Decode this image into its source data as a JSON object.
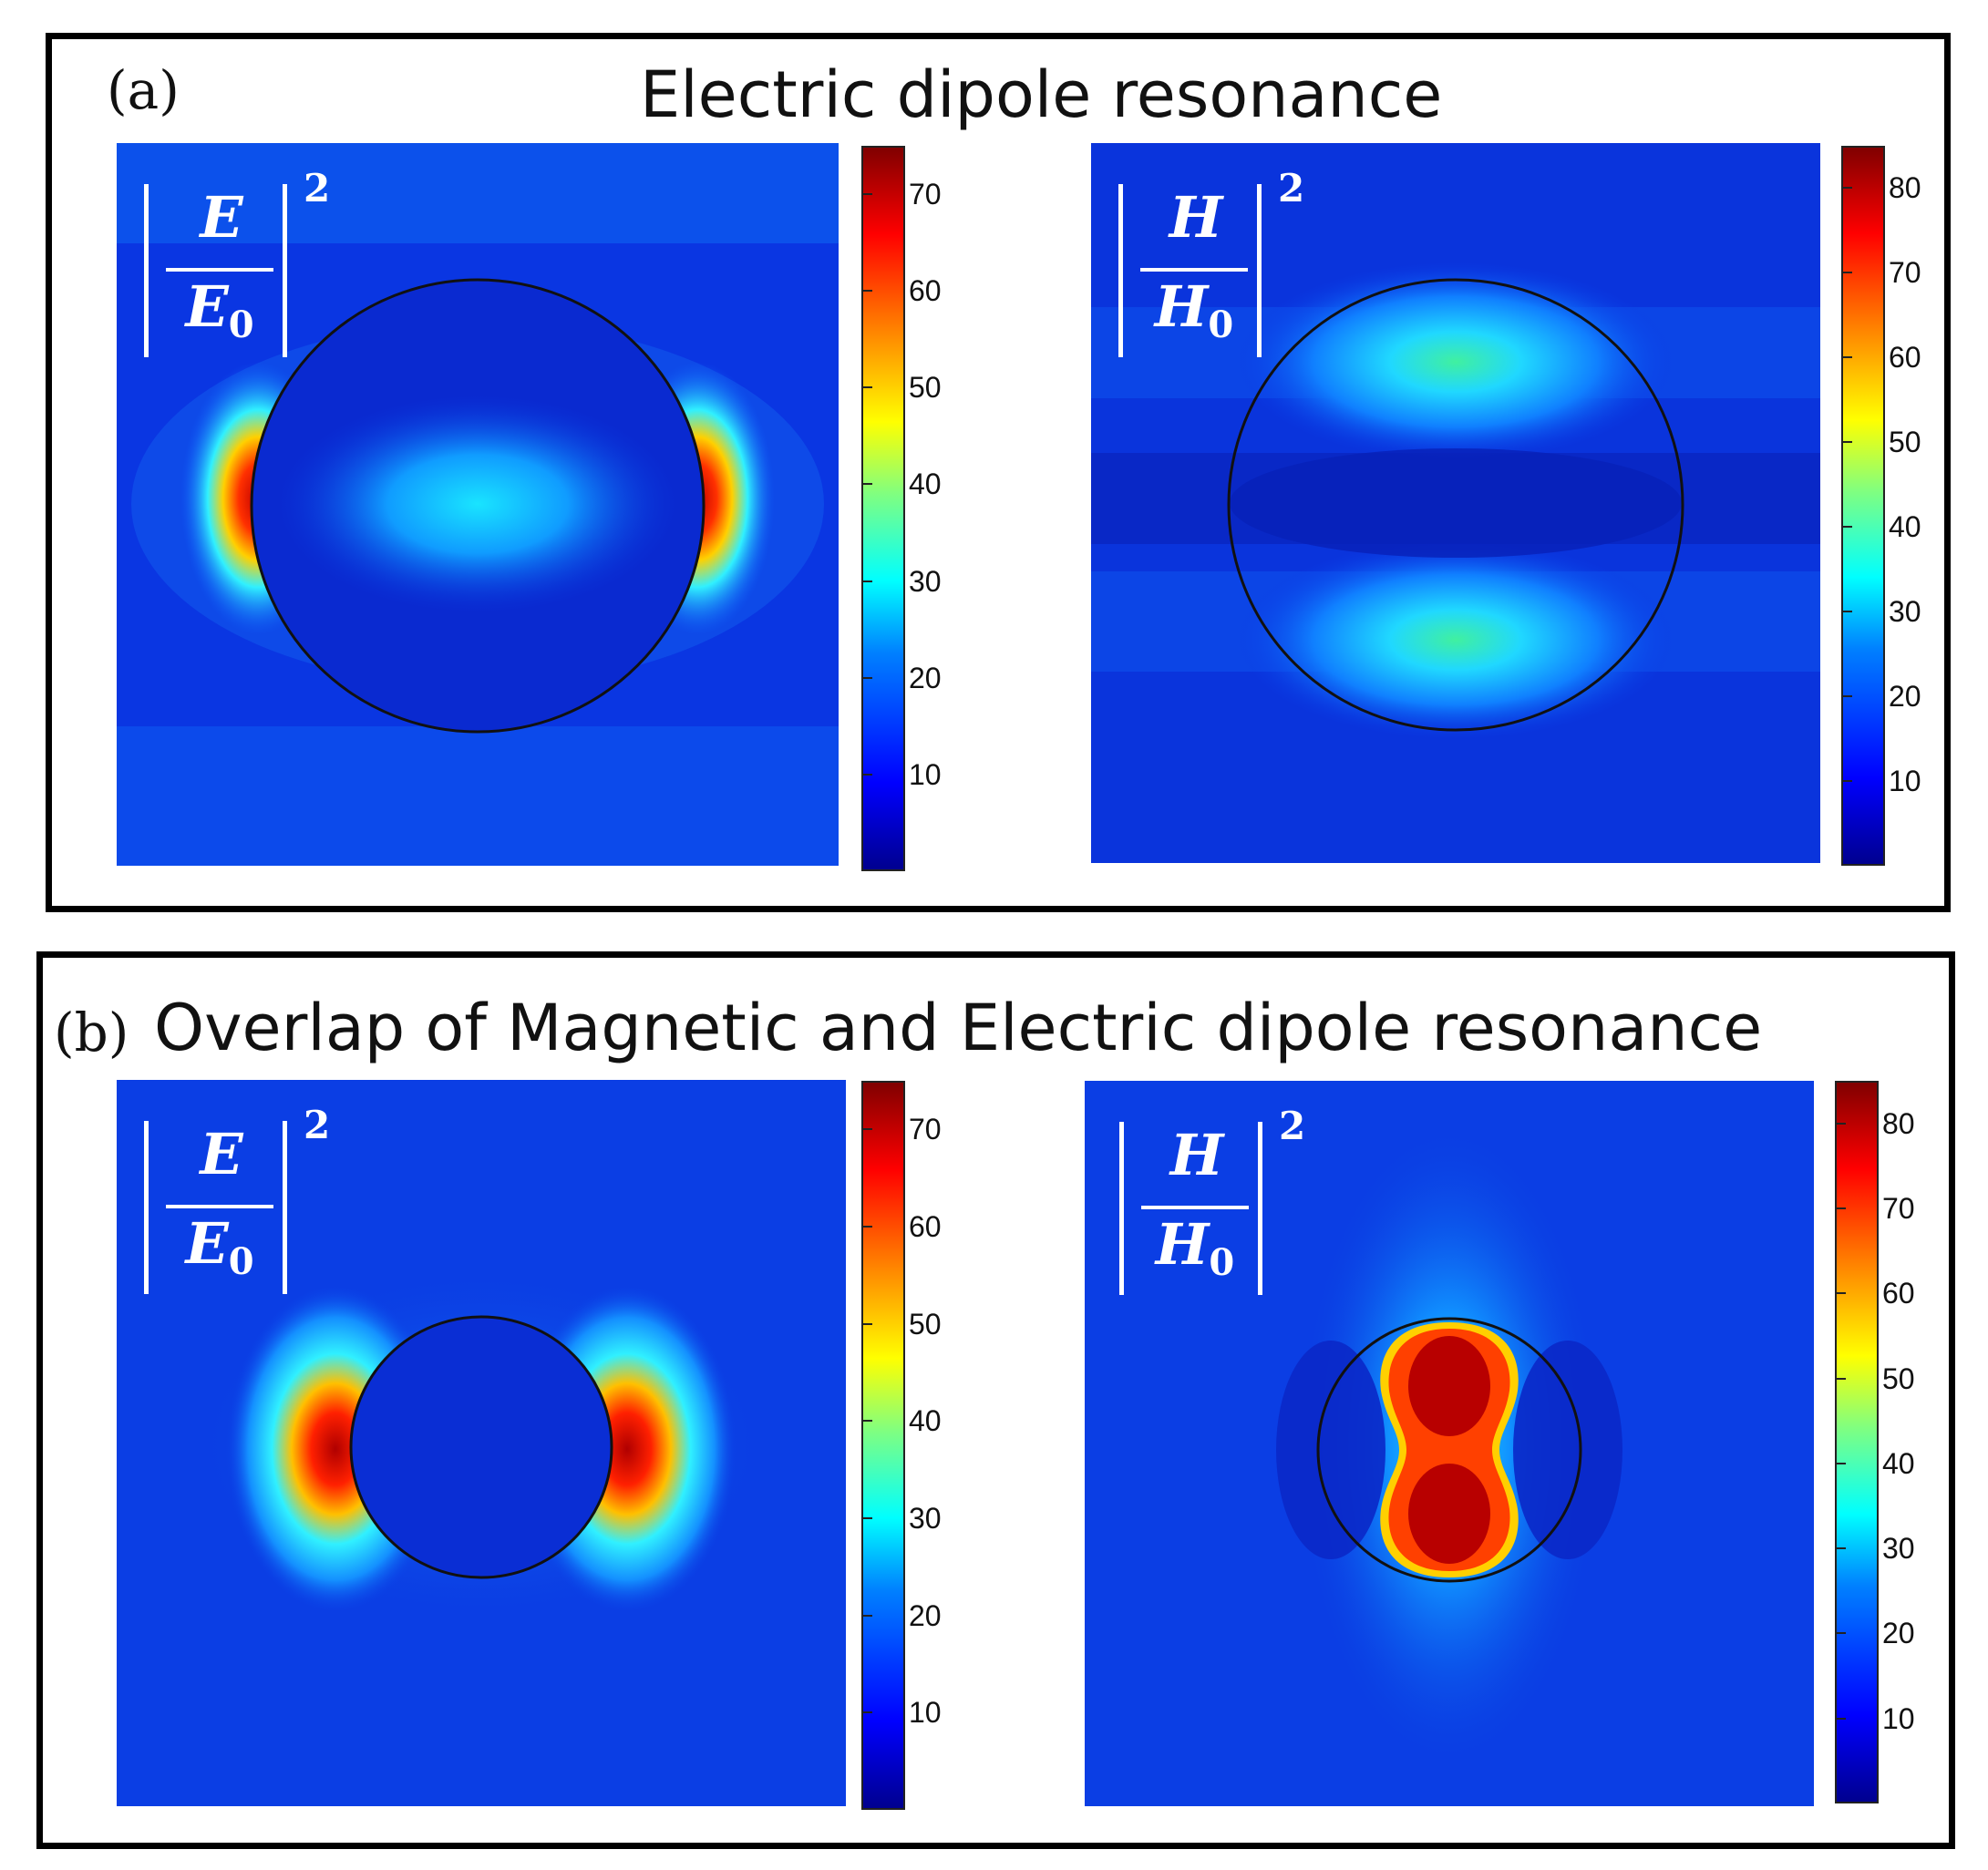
{
  "panels": [
    {
      "tag": "(a)",
      "title": "Electric dipole resonance",
      "plots": [
        {
          "quantity": "E",
          "reference": "E",
          "subscript": "0",
          "power": "2"
        },
        {
          "quantity": "H",
          "reference": "H",
          "subscript": "0",
          "power": "2"
        }
      ]
    },
    {
      "tag": "(b)",
      "title": "Overlap of Magnetic and Electric dipole resonance",
      "plots": [
        {
          "quantity": "E",
          "reference": "E",
          "subscript": "0",
          "power": "2"
        },
        {
          "quantity": "H",
          "reference": "H",
          "subscript": "0",
          "power": "2"
        }
      ]
    }
  ],
  "chart_data": [
    {
      "type": "heatmap",
      "panel": "(a)",
      "title": "Electric dipole resonance",
      "field": "|E/E0|^2",
      "colormap": "jet",
      "zlim": [
        0,
        75
      ],
      "colorbar_ticks": [
        10,
        20,
        30,
        40,
        50,
        60,
        70
      ],
      "features": "hot spots (~70-75) at left and right edges of the circular particle; central ellipse ~25"
    },
    {
      "type": "heatmap",
      "panel": "(a)",
      "title": "Electric dipole resonance",
      "field": "|H/H0|^2",
      "colormap": "jet",
      "zlim": [
        0,
        85
      ],
      "colorbar_ticks": [
        10,
        20,
        30,
        40,
        50,
        60,
        70,
        80
      ],
      "features": "two lobes (~30-35) inside upper and lower parts of the particle"
    },
    {
      "type": "heatmap",
      "panel": "(b)",
      "title": "Overlap of Magnetic and Electric dipole resonance",
      "field": "|E/E0|^2",
      "colormap": "jet",
      "zlim": [
        0,
        75
      ],
      "colorbar_ticks": [
        10,
        20,
        30,
        40,
        50,
        60,
        70
      ],
      "features": "hot spots (~70-75) on left and right outside the smaller particle"
    },
    {
      "type": "heatmap",
      "panel": "(b)",
      "title": "Overlap of Magnetic and Electric dipole resonance",
      "field": "|H/H0|^2",
      "colormap": "jet",
      "zlim": [
        0,
        85
      ],
      "colorbar_ticks": [
        10,
        20,
        30,
        40,
        50,
        60,
        70,
        80
      ],
      "features": "vertical peanut-shaped maximum (~75-85) filling the particle center"
    }
  ]
}
